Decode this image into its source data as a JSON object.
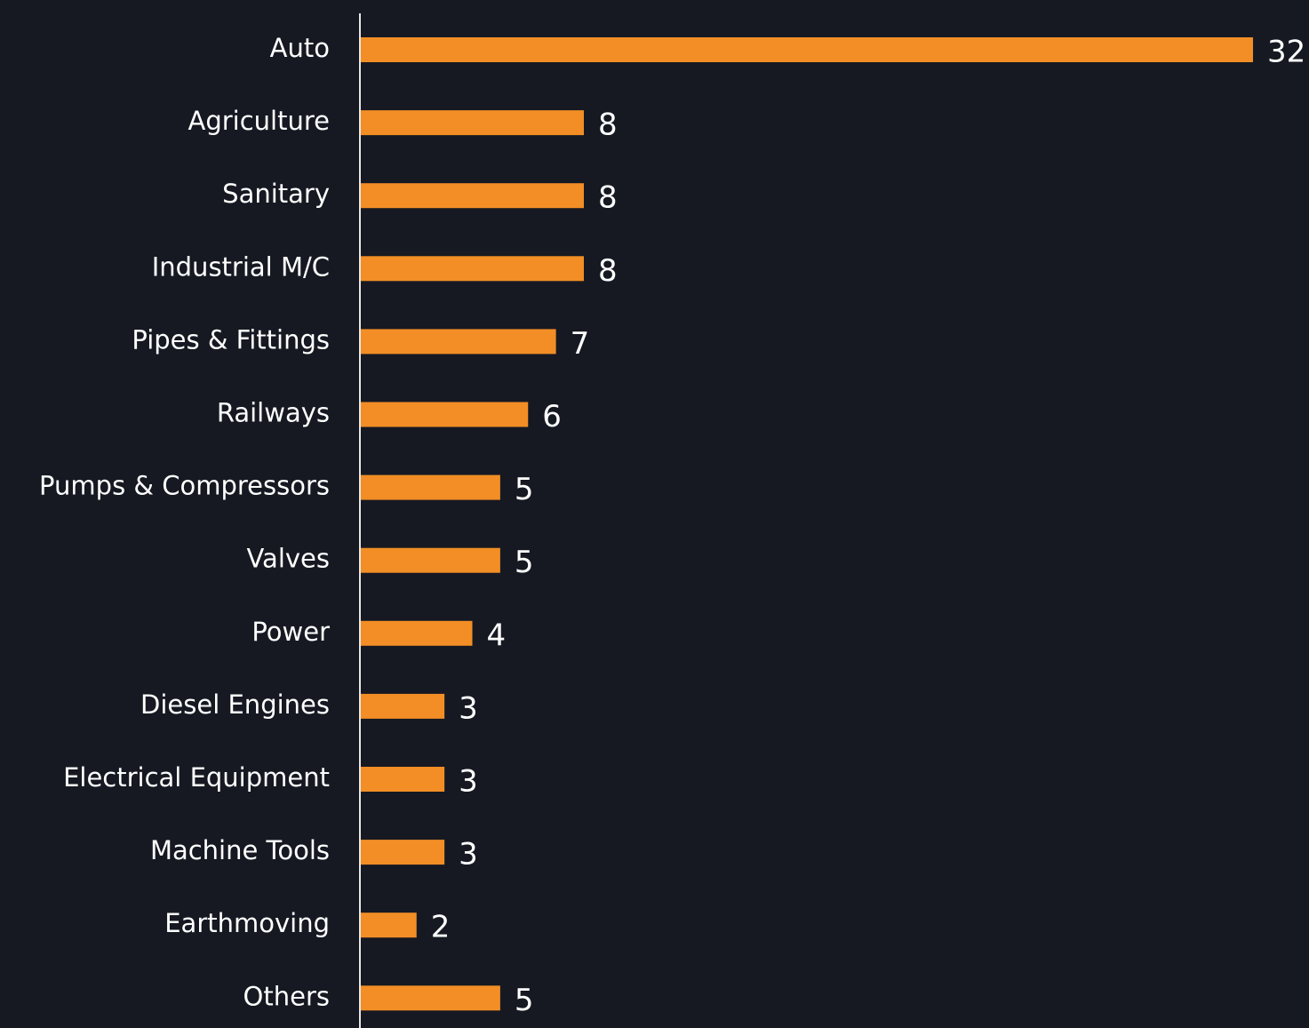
{
  "chart_data": {
    "type": "bar",
    "orientation": "horizontal",
    "categories": [
      "Auto",
      "Agriculture",
      "Sanitary",
      "Industrial M/C",
      "Pipes & Fittings",
      "Railways",
      "Pumps & Compressors",
      "Valves",
      "Power",
      "Diesel Engines",
      "Electrical Equipment",
      "Machine Tools",
      "Earthmoving",
      "Others"
    ],
    "values": [
      32,
      8,
      8,
      8,
      7,
      6,
      5,
      5,
      4,
      3,
      3,
      3,
      2,
      5
    ],
    "color": "#f28e25"
  }
}
